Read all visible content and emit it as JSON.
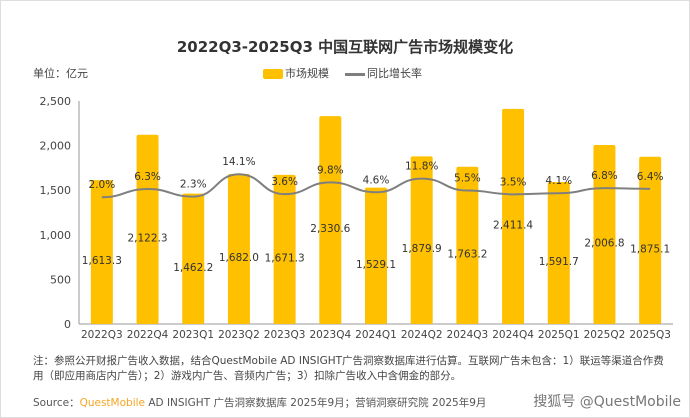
{
  "chart_data": {
    "type": "bar",
    "title": "2022Q3-2025Q3 中国互联网广告市场规模变化",
    "unit_label": "单位：亿元",
    "legend": [
      "市场规模",
      "同比增长率"
    ],
    "legend_position": "top-center",
    "categories": [
      "2022Q3",
      "2022Q4",
      "2023Q1",
      "2023Q2",
      "2023Q3",
      "2023Q4",
      "2024Q1",
      "2024Q2",
      "2024Q3",
      "2024Q4",
      "2025Q1",
      "2025Q2",
      "2025Q3"
    ],
    "series": [
      {
        "name": "市场规模",
        "type": "bar",
        "values": [
          1613.3,
          2122.3,
          1462.2,
          1682.0,
          1671.3,
          2330.6,
          1529.1,
          1879.9,
          1763.2,
          2411.4,
          1591.7,
          2006.8,
          1875.1
        ],
        "labels": [
          "1,613.3",
          "2,122.3",
          "1,462.2",
          "1,682.0",
          "1,671.3",
          "2,330.6",
          "1,529.1",
          "1,879.9",
          "1,763.2",
          "2,411.4",
          "1,591.7",
          "2,006.8",
          "1,875.1"
        ]
      },
      {
        "name": "同比增长率",
        "type": "line",
        "values": [
          2.0,
          6.3,
          2.3,
          14.1,
          3.6,
          9.8,
          4.6,
          11.8,
          5.5,
          3.5,
          4.1,
          6.8,
          6.4
        ],
        "labels": [
          "2.0%",
          "6.3%",
          "2.3%",
          "14.1%",
          "3.6%",
          "9.8%",
          "4.6%",
          "11.8%",
          "5.5%",
          "3.5%",
          "4.1%",
          "6.8%",
          "6.4%"
        ]
      }
    ],
    "yticks": [
      "0",
      "500",
      "1,000",
      "1,500",
      "2,000",
      "2,500"
    ],
    "ylim": [
      0,
      2500
    ],
    "grid": false,
    "colors": {
      "bar": "#FFC000",
      "line": "#7F7F7F"
    }
  },
  "note": "注：参照公开财报广告收入数据，结合QuestMobile AD INSIGHT广告洞察数据库进行估算。互联网广告未包含：1）联运等渠道合作费用（即应用商店内广告）；2）游戏内广告、音频内广告；3）扣除广告收入中含佣金的部分。",
  "source": {
    "prefix": "Source：",
    "brand": "QuestMobile",
    "rest": " AD INSIGHT 广告洞察数据库 2025年9月；营销洞察研究院 2025年9月"
  },
  "watermark": "搜狐号 @QuestMobile"
}
